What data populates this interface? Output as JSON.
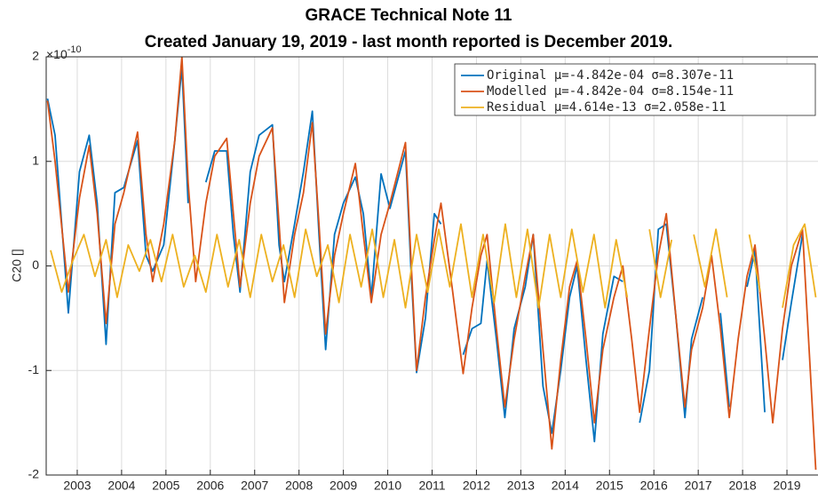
{
  "chart_data": {
    "type": "line",
    "title": "GRACE Technical Note 11",
    "subtitle": "Created January 19, 2019 - last month reported is December 2019.",
    "y_label": "C20 []",
    "y_exponent": {
      "base": "×10",
      "power": "-10"
    },
    "xlim": [
      2002.3,
      2019.7
    ],
    "ylim": [
      -2,
      2
    ],
    "xticks": [
      2003,
      2004,
      2005,
      2006,
      2007,
      2008,
      2009,
      2010,
      2011,
      2012,
      2013,
      2014,
      2015,
      2016,
      2017,
      2018,
      2019
    ],
    "yticks": [
      -2,
      -1,
      0,
      1,
      2
    ],
    "grid": true,
    "legend_position": "top-right",
    "x": [
      2002.33,
      2002.5,
      2002.8,
      2003.05,
      2003.27,
      2003.45,
      2003.65,
      2003.85,
      2004.05,
      2004.36,
      2004.55,
      2004.7,
      2004.95,
      2005.2,
      2005.36,
      2005.5,
      2005.67,
      2005.9,
      2006.1,
      2006.37,
      2006.52,
      2006.67,
      2006.9,
      2007.1,
      2007.4,
      2007.55,
      2007.67,
      2007.9,
      2008.1,
      2008.3,
      2008.45,
      2008.6,
      2008.8,
      2009.0,
      2009.27,
      2009.45,
      2009.63,
      2009.85,
      2010.05,
      2010.4,
      2010.52,
      2010.65,
      2010.85,
      2011.05,
      2011.2,
      2011.45,
      2011.7,
      2011.9,
      2012.1,
      2012.24,
      2012.45,
      2012.64,
      2012.85,
      2013.1,
      2013.28,
      2013.5,
      2013.7,
      2013.9,
      2014.1,
      2014.27,
      2014.47,
      2014.66,
      2014.85,
      2015.1,
      2015.3,
      2015.5,
      2015.68,
      2015.9,
      2016.1,
      2016.28,
      2016.5,
      2016.7,
      2016.85,
      2017.1,
      2017.3,
      2017.5,
      2017.7,
      2017.9,
      2018.1,
      2018.28,
      2018.5,
      2018.68,
      2018.9,
      2019.1,
      2019.35,
      2019.5,
      2019.65
    ],
    "series": [
      {
        "name": "Original μ=-4.842e-04 σ=8.307e-11",
        "color": "#0072bd",
        "values": [
          1.6,
          1.25,
          -0.45,
          0.9,
          1.25,
          0.6,
          -0.75,
          0.7,
          0.75,
          1.2,
          0.1,
          -0.05,
          0.2,
          1.2,
          1.9,
          0.6,
          null,
          0.8,
          1.1,
          1.1,
          0.3,
          -0.25,
          0.9,
          1.25,
          1.35,
          0.2,
          -0.15,
          0.4,
          0.9,
          1.48,
          0.3,
          -0.8,
          0.3,
          0.6,
          0.85,
          0.5,
          -0.3,
          0.88,
          0.55,
          1.1,
          0.0,
          -1.02,
          -0.5,
          0.5,
          0.4,
          null,
          -0.85,
          -0.6,
          -0.55,
          0.05,
          -0.7,
          -1.45,
          -0.6,
          -0.2,
          0.3,
          -1.15,
          -1.6,
          -1.0,
          -0.3,
          0.0,
          -0.9,
          -1.68,
          -0.65,
          -0.1,
          -0.15,
          null,
          -1.5,
          -1.0,
          0.35,
          0.4,
          -0.5,
          -1.45,
          -0.7,
          -0.3,
          null,
          -0.45,
          -1.35,
          null,
          -0.2,
          0.15,
          -1.4,
          null,
          -0.9,
          -0.35,
          0.3,
          null,
          -1.85
        ]
      },
      {
        "name": "Modelled μ=-4.842e-04 σ=8.154e-11",
        "color": "#d95319",
        "values": [
          1.58,
          1.0,
          -0.25,
          0.65,
          1.15,
          0.5,
          -0.55,
          0.4,
          0.7,
          1.28,
          0.3,
          -0.15,
          0.4,
          1.2,
          2.0,
          0.8,
          -0.15,
          0.6,
          1.05,
          1.22,
          0.5,
          -0.2,
          0.6,
          1.05,
          1.32,
          0.4,
          -0.35,
          0.3,
          0.7,
          1.37,
          0.4,
          -0.65,
          0.1,
          0.5,
          0.98,
          0.3,
          -0.35,
          0.3,
          0.6,
          1.18,
          0.1,
          -1.0,
          -0.3,
          0.25,
          0.6,
          -0.2,
          -1.03,
          -0.4,
          0.1,
          0.3,
          -0.6,
          -1.35,
          -0.7,
          -0.1,
          0.3,
          -0.8,
          -1.75,
          -0.9,
          -0.2,
          0.05,
          -0.7,
          -1.5,
          -0.8,
          -0.3,
          0.0,
          -0.7,
          -1.4,
          -0.6,
          0.1,
          0.5,
          -0.5,
          -1.35,
          -0.8,
          -0.4,
          0.1,
          -0.6,
          -1.45,
          -0.7,
          -0.1,
          0.2,
          -0.7,
          -1.5,
          -0.6,
          0.0,
          0.35,
          -0.8,
          -1.95
        ]
      },
      {
        "name": "Residual μ=4.614e-13 σ=2.058e-11",
        "color": "#edb120",
        "x": [
          2002.4,
          2002.65,
          2002.9,
          2003.15,
          2003.4,
          2003.65,
          2003.9,
          2004.15,
          2004.4,
          2004.65,
          2004.9,
          2005.15,
          2005.4,
          2005.65,
          2005.9,
          2006.15,
          2006.4,
          2006.65,
          2006.9,
          2007.15,
          2007.4,
          2007.65,
          2007.9,
          2008.15,
          2008.4,
          2008.65,
          2008.9,
          2009.15,
          2009.4,
          2009.65,
          2009.9,
          2010.15,
          2010.4,
          2010.65,
          2010.9,
          2011.15,
          2011.4,
          2011.65,
          2011.9,
          2012.15,
          2012.4,
          2012.65,
          2012.9,
          2013.15,
          2013.4,
          2013.65,
          2013.9,
          2014.15,
          2014.4,
          2014.65,
          2014.9,
          2015.15,
          2015.4,
          2015.65,
          2015.9,
          2016.15,
          2016.4,
          2016.65,
          2016.9,
          2017.15,
          2017.4,
          2017.65,
          2017.9,
          2018.15,
          2018.4,
          2018.65,
          2018.9,
          2019.15,
          2019.4,
          2019.65
        ],
        "values": [
          0.15,
          -0.25,
          0.05,
          0.3,
          -0.1,
          0.25,
          -0.3,
          0.2,
          -0.05,
          0.25,
          -0.15,
          0.3,
          -0.2,
          0.1,
          -0.25,
          0.3,
          -0.2,
          0.25,
          -0.3,
          0.3,
          -0.15,
          0.2,
          -0.3,
          0.35,
          -0.1,
          0.2,
          -0.35,
          0.3,
          -0.2,
          0.35,
          -0.3,
          0.25,
          -0.4,
          0.3,
          -0.25,
          0.35,
          -0.2,
          0.4,
          -0.3,
          0.3,
          -0.35,
          0.4,
          -0.3,
          0.35,
          -0.4,
          0.3,
          -0.3,
          0.35,
          -0.25,
          0.3,
          -0.4,
          0.25,
          -0.3,
          null,
          0.35,
          -0.3,
          0.25,
          null,
          0.3,
          -0.2,
          0.35,
          -0.3,
          null,
          0.3,
          -0.25,
          null,
          -0.4,
          0.2,
          0.4,
          -0.3
        ]
      }
    ]
  }
}
